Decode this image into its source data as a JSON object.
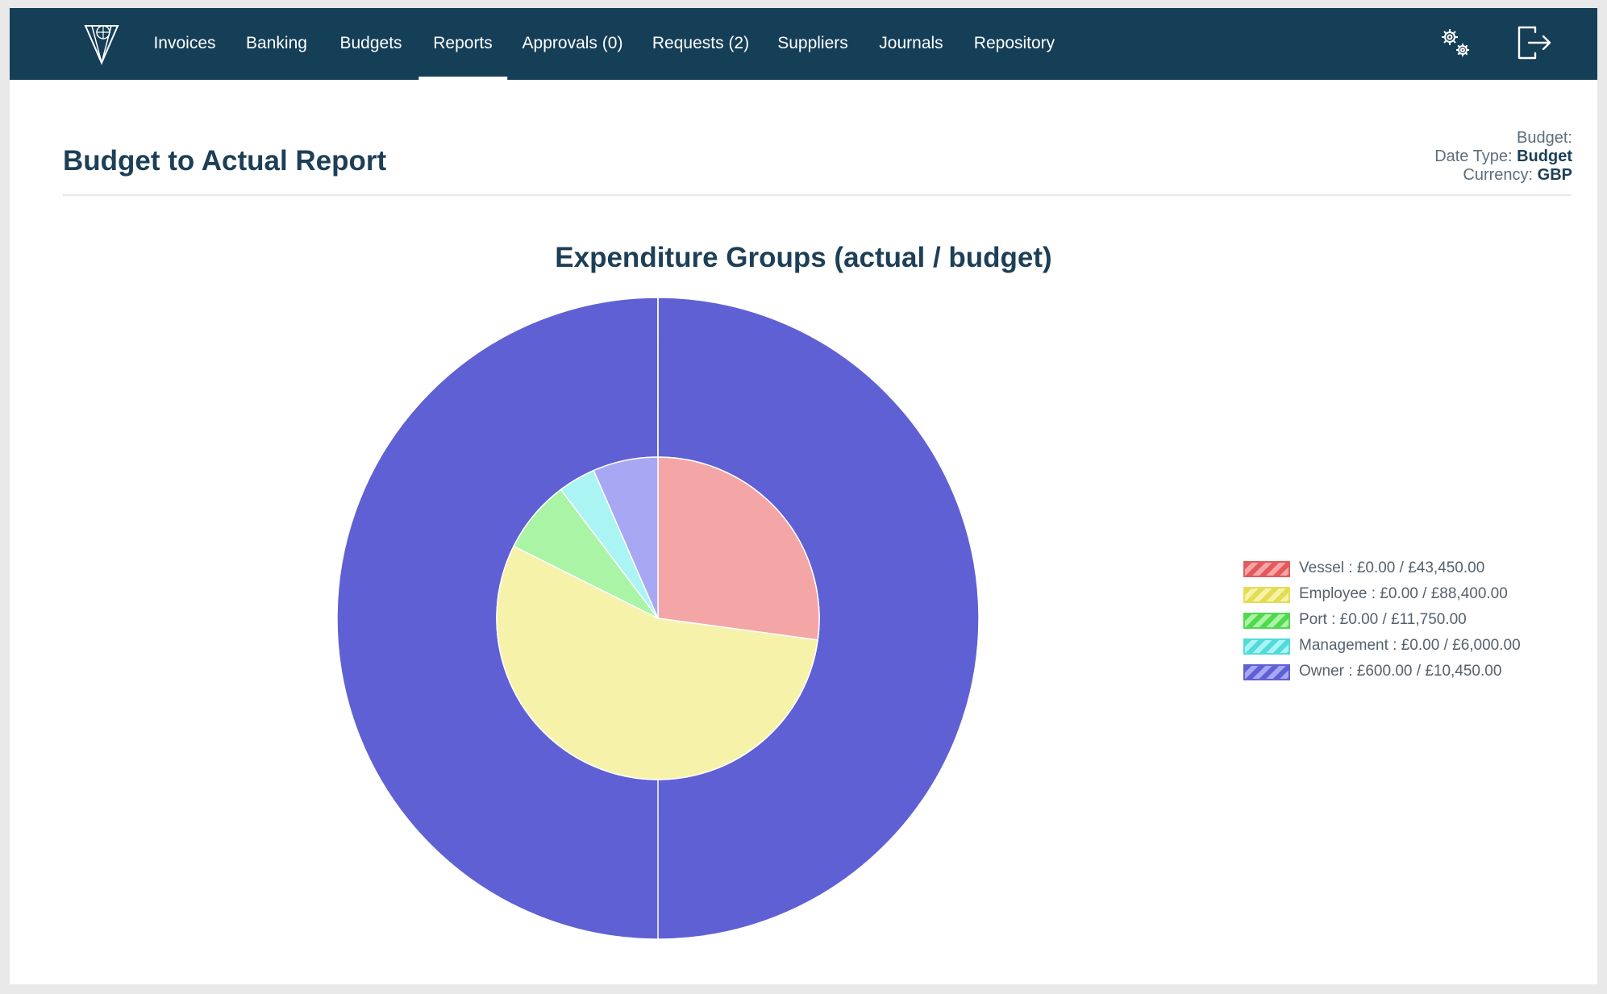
{
  "nav": {
    "items": [
      {
        "label": "Invoices",
        "active": false
      },
      {
        "label": "Banking",
        "active": false
      },
      {
        "label": "Budgets",
        "active": false
      },
      {
        "label": "Reports",
        "active": true
      },
      {
        "label": "Approvals (0)",
        "active": false
      },
      {
        "label": "Requests (2)",
        "active": false
      },
      {
        "label": "Suppliers",
        "active": false
      },
      {
        "label": "Journals",
        "active": false
      },
      {
        "label": "Repository",
        "active": false
      }
    ],
    "icons": [
      "settings-gears-icon",
      "logout-icon"
    ],
    "background": "#153e57"
  },
  "page": {
    "title": "Budget to Actual Report",
    "meta": {
      "budget_label": "Budget:",
      "budget_value": "",
      "date_type_label": "Date Type:",
      "date_type_value": "Budget",
      "currency_label": "Currency:",
      "currency_value": "GBP"
    }
  },
  "chart_data": {
    "type": "pie",
    "title": "Expenditure Groups (actual / budget)",
    "currency": "GBP",
    "legend_position": "right",
    "categories": [
      "Vessel",
      "Employee",
      "Port",
      "Management",
      "Owner"
    ],
    "series": [
      {
        "name": "actual",
        "values": [
          0,
          0,
          0,
          0,
          600
        ]
      },
      {
        "name": "budget",
        "values": [
          43450,
          88400,
          11750,
          6000,
          10450
        ]
      }
    ],
    "legend_labels": [
      "Vessel : £0.00 / £43,450.00",
      "Employee : £0.00 / £88,400.00",
      "Port : £0.00 / £11,750.00",
      "Management : £0.00 / £6,000.00",
      "Owner : £600.00 / £10,450.00"
    ],
    "colors": {
      "fill": [
        "#f4a6a7",
        "#f6f2aa",
        "#aaf4a5",
        "#aaf4f4",
        "#a8a7f4"
      ],
      "border": [
        "#e35a5c",
        "#e4dc52",
        "#52d84e",
        "#52dada",
        "#5f60d4"
      ]
    }
  }
}
